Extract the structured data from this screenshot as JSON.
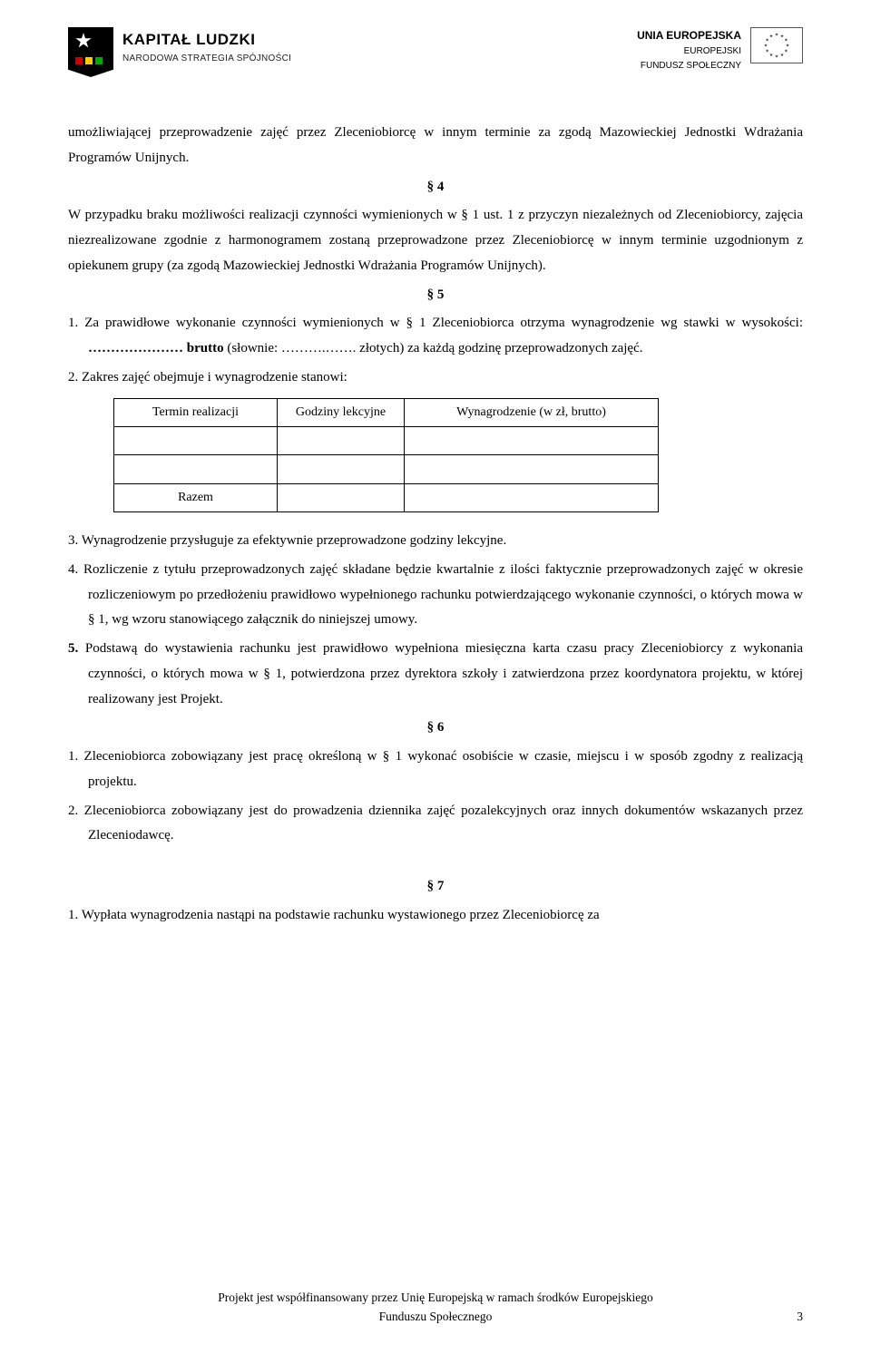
{
  "header": {
    "kapital_title": "KAPITAŁ LUDZKI",
    "kapital_subtitle": "NARODOWA STRATEGIA SPÓJNOŚCI",
    "eu_line1": "UNIA EUROPEJSKA",
    "eu_line2": "EUROPEJSKI",
    "eu_line3": "FUNDUSZ SPOŁECZNY"
  },
  "body": {
    "p1": "umożliwiającej przeprowadzenie zajęć przez Zleceniobiorcę   w innym terminie za zgodą Mazowieckiej Jednostki Wdrażania Programów Unijnych.",
    "sec4": "§ 4",
    "p2": "W przypadku braku możliwości realizacji czynności wymienionych w § 1 ust. 1 z przyczyn niezależnych od Zleceniobiorcy, zajęcia niezrealizowane zgodnie z harmonogramem zostaną przeprowadzone przez Zleceniobiorcę w innym terminie uzgodnionym z opiekunem grupy (za zgodą Mazowieckiej Jednostki Wdrażania Programów Unijnych).",
    "sec5": "§ 5",
    "li1_a": "1. Za prawidłowe wykonanie czynności wymienionych w § 1 Zleceniobiorca   otrzyma wynagrodzenie wg  stawki    w wysokości: ",
    "li1_b": "………………… brutto",
    "li1_c": " (słownie: ……….……. złotych) za każdą godzinę przeprowadzonych zajęć.",
    "li2": "2. Zakres zajęć obejmuje i wynagrodzenie stanowi:",
    "table": {
      "h1": "Termin realizacji",
      "h2": "Godziny lekcyjne",
      "h3": "Wynagrodzenie (w zł, brutto)",
      "razem": "Razem"
    },
    "li3": "3. Wynagrodzenie przysługuje za efektywnie przeprowadzone godziny lekcyjne.",
    "li4": "4. Rozliczenie z tytułu przeprowadzonych zajęć składane będzie kwartalnie z ilości faktycznie przeprowadzonych zajęć w okresie rozliczeniowym po przedłożeniu prawidłowo wypełnionego rachunku potwierdzającego wykonanie czynności, o których mowa w § 1, wg wzoru stanowiącego załącznik do niniejszej umowy.",
    "li5_num": "5.",
    "li5": "  Podstawą do wystawienia rachunku jest prawidłowo wypełniona miesięczna karta czasu pracy Zleceniobiorcy z wykonania czynności, o których mowa w § 1, potwierdzona przez dyrektora szkoły i  zatwierdzona przez koordynatora projektu, w której realizowany jest Projekt.",
    "sec6": "§ 6",
    "li6_1": "1. Zleceniobiorca zobowiązany jest pracę określoną w § 1 wykonać osobiście w czasie, miejscu i w sposób zgodny z realizacją projektu.",
    "li6_2": "2. Zleceniobiorca zobowiązany jest do prowadzenia dziennika zajęć pozalekcyjnych oraz innych dokumentów wskazanych przez Zleceniodawcę.",
    "sec7": "§ 7",
    "li7_1": "1.  Wypłata wynagrodzenia nastąpi na podstawie rachunku wystawionego przez Zleceniobiorcę za"
  },
  "footer": {
    "text1": "Projekt jest współfinansowany przez Unię Europejską w ramach środków Europejskiego",
    "text2": "Funduszu  Społecznego",
    "page": "3"
  }
}
